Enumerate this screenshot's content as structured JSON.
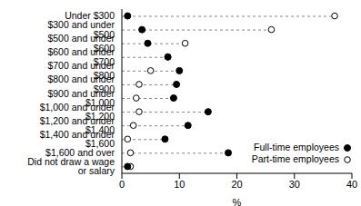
{
  "chart_data": {
    "type": "scatter",
    "orientation": "horizontal",
    "x_label": "%",
    "categories": [
      "Under $300",
      "$300 and under $500",
      "$500 and under $600",
      "$600 and under $700",
      "$700 and under $800",
      "$800 and under $900",
      "$900 and under $1,000",
      "$1,000 and under $1,200",
      "$1,200 and under $1,400",
      "$1,400 and under $1,600",
      "$1,600 and over",
      "Did not draw a wage or salary"
    ],
    "series": [
      {
        "name": "Full-time employees",
        "color": "#000000",
        "marker": "filled_circle",
        "values": [
          1,
          3.5,
          4.5,
          8,
          10,
          9.5,
          9,
          15,
          11.5,
          7.5,
          18.5,
          1
        ]
      },
      {
        "name": "Part-time employees",
        "color": "#000000",
        "marker": "open_circle",
        "values": [
          37,
          26,
          11,
          8,
          5,
          3,
          2.5,
          3,
          2,
          1,
          1.5,
          1.5
        ]
      }
    ],
    "xlim": [
      0,
      40
    ],
    "xticks": [
      0,
      10,
      20,
      30,
      40
    ],
    "grid": false,
    "legend": "bottom-right"
  }
}
